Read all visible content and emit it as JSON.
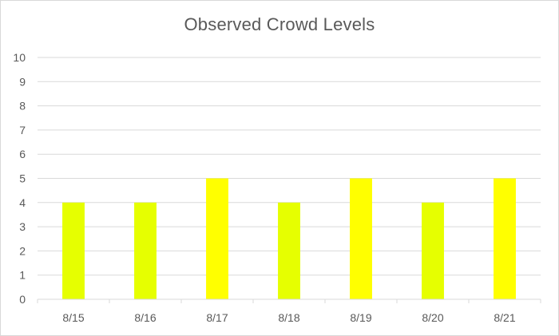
{
  "chart_data": {
    "type": "bar",
    "title": "Observed Crowd Levels",
    "xlabel": "",
    "ylabel": "",
    "categories": [
      "8/15",
      "8/16",
      "8/17",
      "8/18",
      "8/19",
      "8/20",
      "8/21"
    ],
    "values": [
      4,
      4,
      5,
      4,
      5,
      4,
      5
    ],
    "bar_colors": [
      "#e6ff00",
      "#e6ff00",
      "#ffff00",
      "#e6ff00",
      "#ffff00",
      "#e6ff00",
      "#ffff00"
    ],
    "ylim": [
      0,
      10
    ],
    "yticks": [
      "0",
      "1",
      "2",
      "3",
      "4",
      "5",
      "6",
      "7",
      "8",
      "9",
      "10"
    ],
    "grid": true,
    "legend": "none",
    "gridline_color": "#d9d9d9",
    "text_color": "#595959"
  }
}
